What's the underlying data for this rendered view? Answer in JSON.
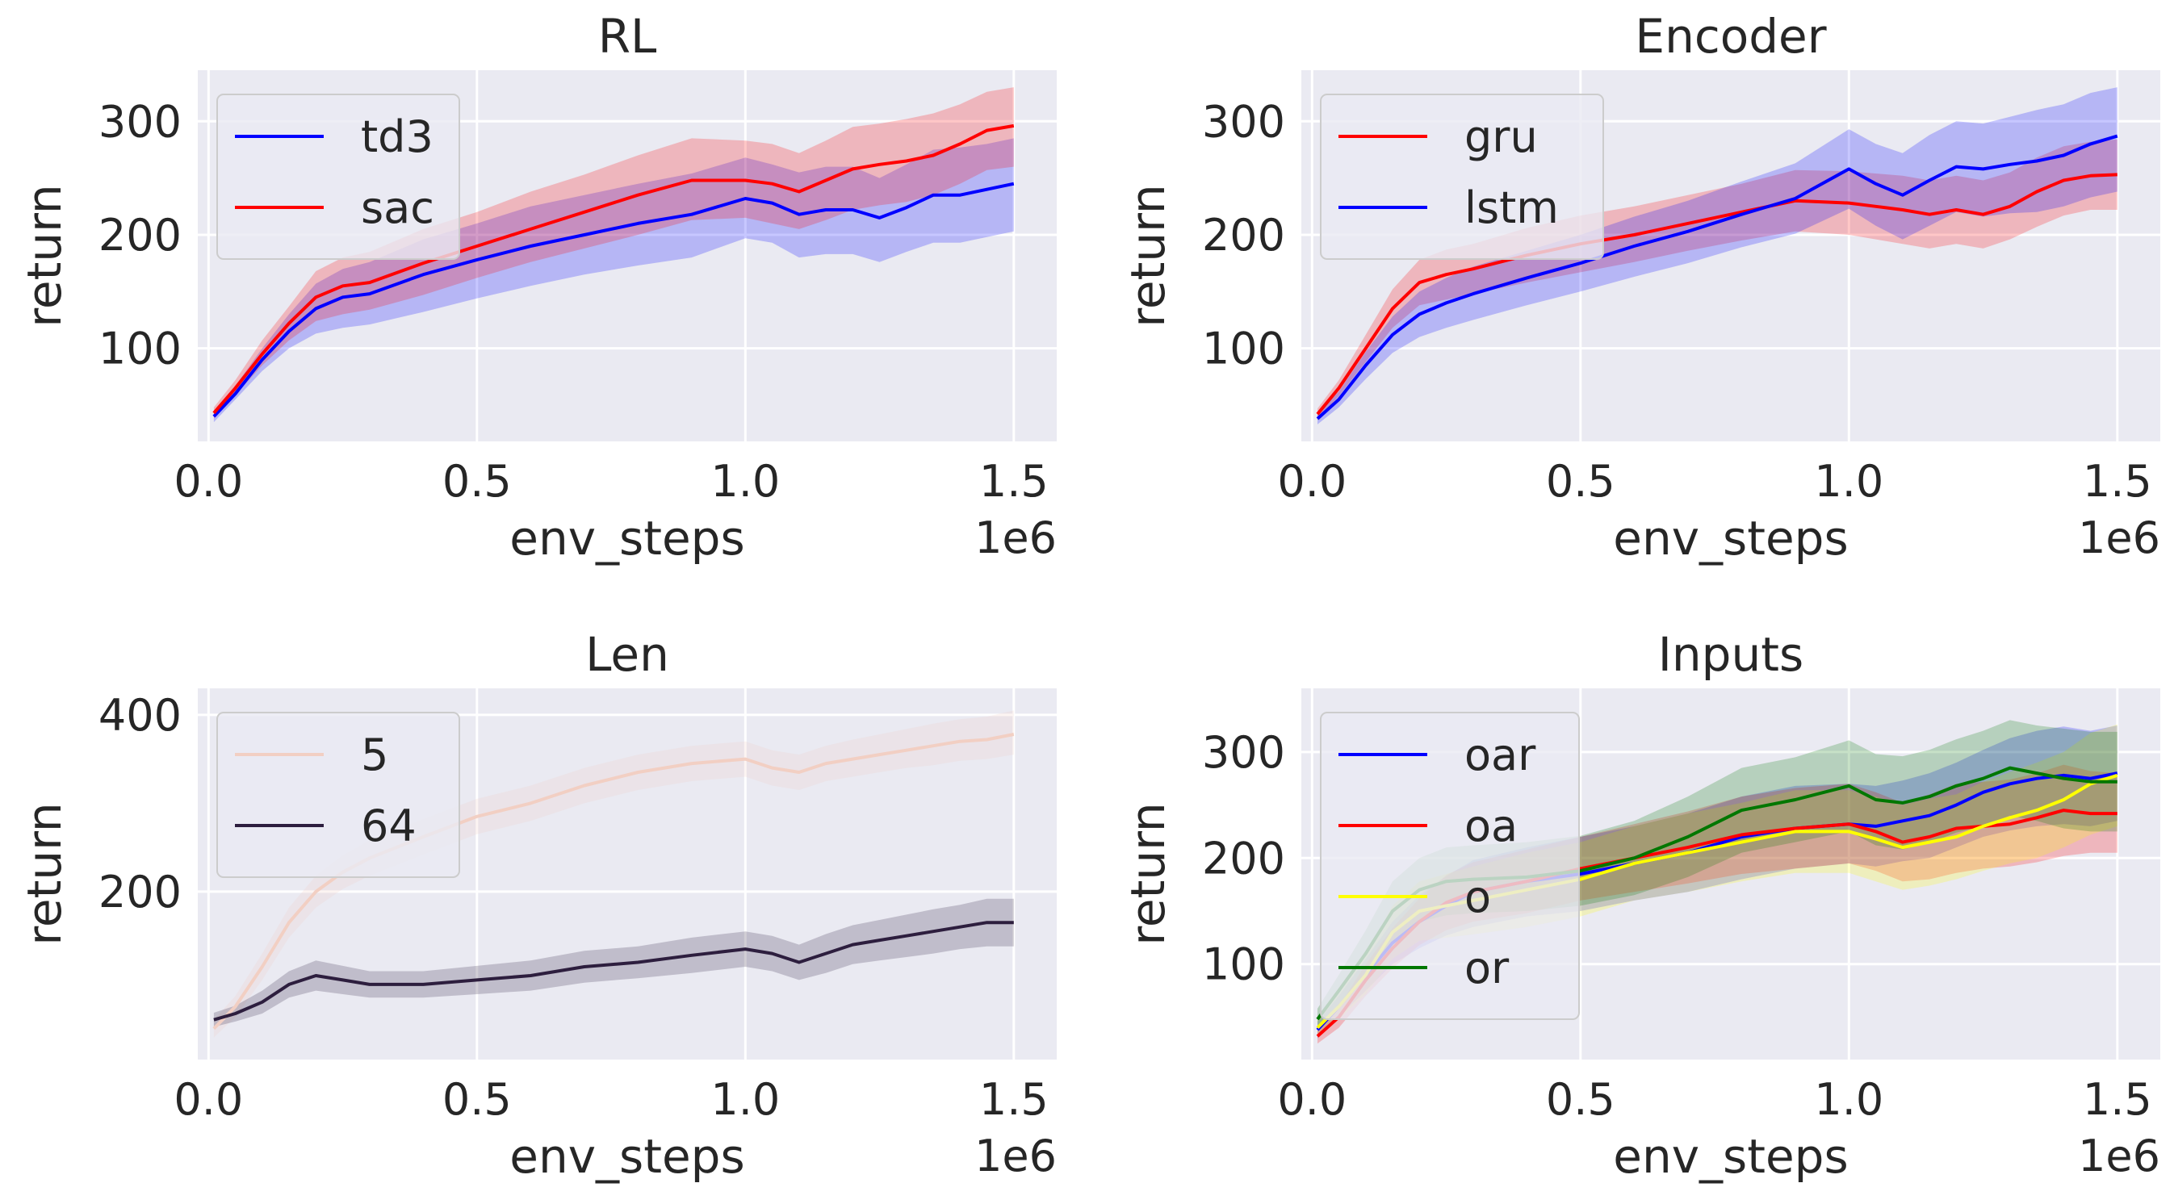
{
  "chart_data": [
    {
      "type": "line",
      "title": "RL",
      "xlabel": "env_steps",
      "ylabel": "return",
      "x_offset_label": "1e6",
      "xlim": [
        -0.02,
        1.58
      ],
      "ylim": [
        18,
        345
      ],
      "xticks": [
        0.0,
        0.5,
        1.0,
        1.5
      ],
      "xtick_labels": [
        "0.0",
        "0.5",
        "1.0",
        "1.5"
      ],
      "yticks": [
        100,
        200,
        300
      ],
      "ytick_labels": [
        "100",
        "200",
        "300"
      ],
      "legend": "top-left",
      "x": [
        0.01,
        0.05,
        0.1,
        0.15,
        0.2,
        0.25,
        0.3,
        0.4,
        0.5,
        0.6,
        0.7,
        0.8,
        0.9,
        1.0,
        1.05,
        1.1,
        1.15,
        1.2,
        1.25,
        1.3,
        1.35,
        1.4,
        1.45,
        1.5
      ],
      "series": [
        {
          "name": "td3",
          "color": "#0000ff",
          "values": [
            40,
            60,
            90,
            115,
            135,
            145,
            148,
            165,
            178,
            190,
            200,
            210,
            218,
            232,
            228,
            218,
            222,
            222,
            215,
            224,
            235,
            235,
            240,
            245
          ],
          "lower": [
            35,
            55,
            80,
            100,
            113,
            118,
            121,
            132,
            144,
            155,
            165,
            173,
            180,
            197,
            193,
            180,
            183,
            183,
            176,
            185,
            193,
            193,
            198,
            203
          ],
          "upper": [
            45,
            67,
            100,
            130,
            157,
            170,
            176,
            196,
            210,
            225,
            235,
            245,
            254,
            268,
            262,
            255,
            260,
            260,
            250,
            262,
            275,
            277,
            280,
            285
          ]
        },
        {
          "name": "sac",
          "color": "#ff0000",
          "values": [
            43,
            65,
            95,
            122,
            145,
            155,
            158,
            175,
            190,
            205,
            220,
            235,
            248,
            248,
            245,
            238,
            248,
            258,
            262,
            265,
            270,
            280,
            292,
            296
          ],
          "lower": [
            38,
            59,
            85,
            107,
            124,
            130,
            134,
            147,
            162,
            176,
            188,
            200,
            213,
            215,
            210,
            205,
            213,
            222,
            226,
            229,
            235,
            245,
            257,
            260
          ],
          "upper": [
            48,
            72,
            107,
            137,
            168,
            180,
            185,
            205,
            220,
            238,
            253,
            270,
            285,
            283,
            280,
            272,
            283,
            295,
            298,
            302,
            307,
            315,
            326,
            330
          ]
        }
      ]
    },
    {
      "type": "line",
      "title": "Encoder",
      "xlabel": "env_steps",
      "ylabel": "return",
      "x_offset_label": "1e6",
      "xlim": [
        -0.02,
        1.58
      ],
      "ylim": [
        18,
        345
      ],
      "xticks": [
        0.0,
        0.5,
        1.0,
        1.5
      ],
      "xtick_labels": [
        "0.0",
        "0.5",
        "1.0",
        "1.5"
      ],
      "yticks": [
        100,
        200,
        300
      ],
      "ytick_labels": [
        "100",
        "200",
        "300"
      ],
      "legend": "top-left",
      "x": [
        0.01,
        0.05,
        0.1,
        0.15,
        0.2,
        0.25,
        0.3,
        0.4,
        0.5,
        0.6,
        0.7,
        0.8,
        0.9,
        1.0,
        1.05,
        1.1,
        1.15,
        1.2,
        1.25,
        1.3,
        1.35,
        1.4,
        1.45,
        1.5
      ],
      "series": [
        {
          "name": "gru",
          "color": "#ff0000",
          "values": [
            42,
            65,
            100,
            135,
            158,
            165,
            170,
            182,
            192,
            200,
            210,
            220,
            230,
            228,
            225,
            222,
            218,
            222,
            218,
            225,
            238,
            248,
            252,
            253
          ],
          "lower": [
            37,
            58,
            88,
            118,
            138,
            143,
            148,
            158,
            167,
            176,
            186,
            195,
            203,
            200,
            196,
            192,
            188,
            192,
            188,
            196,
            207,
            217,
            222,
            222
          ],
          "upper": [
            47,
            72,
            112,
            152,
            178,
            187,
            192,
            206,
            217,
            225,
            235,
            245,
            257,
            256,
            254,
            252,
            248,
            252,
            248,
            255,
            268,
            278,
            282,
            284
          ]
        },
        {
          "name": "lstm",
          "color": "#0000ff",
          "values": [
            38,
            55,
            85,
            112,
            130,
            140,
            148,
            162,
            175,
            190,
            203,
            218,
            232,
            258,
            245,
            235,
            248,
            260,
            258,
            262,
            265,
            270,
            280,
            287
          ],
          "lower": [
            33,
            48,
            73,
            96,
            110,
            118,
            125,
            138,
            150,
            163,
            175,
            189,
            201,
            223,
            208,
            196,
            208,
            220,
            216,
            219,
            220,
            225,
            233,
            238
          ],
          "upper": [
            43,
            62,
            97,
            128,
            150,
            162,
            172,
            186,
            200,
            216,
            230,
            247,
            263,
            293,
            280,
            272,
            288,
            300,
            298,
            304,
            310,
            315,
            325,
            330
          ]
        }
      ]
    },
    {
      "type": "line",
      "title": "Len",
      "xlabel": "env_steps",
      "ylabel": "return",
      "x_offset_label": "1e6",
      "xlim": [
        -0.02,
        1.58
      ],
      "ylim": [
        10,
        430
      ],
      "xticks": [
        0.0,
        0.5,
        1.0,
        1.5
      ],
      "xtick_labels": [
        "0.0",
        "0.5",
        "1.0",
        "1.5"
      ],
      "yticks": [
        200,
        400
      ],
      "ytick_labels": [
        "200",
        "400"
      ],
      "legend": "top-left",
      "x": [
        0.01,
        0.05,
        0.1,
        0.15,
        0.2,
        0.25,
        0.3,
        0.4,
        0.5,
        0.6,
        0.7,
        0.8,
        0.9,
        1.0,
        1.05,
        1.1,
        1.15,
        1.2,
        1.25,
        1.3,
        1.35,
        1.4,
        1.45,
        1.5
      ],
      "series": [
        {
          "name": "5",
          "color": "#f2cfc3",
          "values": [
            45,
            70,
            115,
            165,
            200,
            222,
            238,
            262,
            285,
            300,
            320,
            335,
            345,
            350,
            340,
            335,
            345,
            350,
            355,
            360,
            365,
            370,
            372,
            378
          ],
          "lower": [
            35,
            58,
            100,
            148,
            182,
            203,
            218,
            242,
            265,
            280,
            300,
            315,
            325,
            330,
            320,
            315,
            325,
            330,
            335,
            340,
            343,
            348,
            350,
            355
          ],
          "upper": [
            55,
            82,
            130,
            182,
            218,
            241,
            258,
            282,
            305,
            320,
            340,
            355,
            365,
            370,
            360,
            355,
            365,
            372,
            378,
            384,
            390,
            395,
            398,
            405
          ]
        },
        {
          "name": "64",
          "color": "#2d1e3e",
          "values": [
            55,
            62,
            75,
            95,
            105,
            100,
            95,
            95,
            100,
            105,
            115,
            120,
            128,
            135,
            130,
            120,
            130,
            140,
            145,
            150,
            155,
            160,
            165,
            165
          ],
          "lower": [
            47,
            53,
            62,
            80,
            88,
            84,
            80,
            80,
            84,
            88,
            97,
            102,
            108,
            115,
            110,
            100,
            108,
            118,
            122,
            126,
            130,
            135,
            138,
            138
          ],
          "upper": [
            63,
            71,
            88,
            110,
            122,
            116,
            110,
            110,
            116,
            122,
            133,
            138,
            148,
            155,
            150,
            140,
            152,
            162,
            168,
            174,
            180,
            185,
            192,
            192
          ]
        }
      ]
    },
    {
      "type": "line",
      "title": "Inputs",
      "xlabel": "env_steps",
      "ylabel": "return",
      "x_offset_label": "1e6",
      "xlim": [
        -0.02,
        1.58
      ],
      "ylim": [
        10,
        360
      ],
      "xticks": [
        0.0,
        0.5,
        1.0,
        1.5
      ],
      "xtick_labels": [
        "0.0",
        "0.5",
        "1.0",
        "1.5"
      ],
      "yticks": [
        100,
        200,
        300
      ],
      "ytick_labels": [
        "100",
        "200",
        "300"
      ],
      "legend": "top-left",
      "x": [
        0.01,
        0.05,
        0.1,
        0.15,
        0.2,
        0.25,
        0.3,
        0.4,
        0.5,
        0.6,
        0.7,
        0.8,
        0.9,
        1.0,
        1.05,
        1.1,
        1.15,
        1.2,
        1.25,
        1.3,
        1.35,
        1.4,
        1.45,
        1.5
      ],
      "series": [
        {
          "name": "oar",
          "color": "#0000ff",
          "values": [
            38,
            60,
            90,
            120,
            140,
            155,
            168,
            178,
            185,
            195,
            205,
            220,
            228,
            232,
            230,
            235,
            240,
            250,
            262,
            270,
            275,
            278,
            275,
            280
          ],
          "lower": [
            30,
            50,
            75,
            100,
            115,
            127,
            135,
            145,
            150,
            160,
            168,
            180,
            190,
            195,
            192,
            197,
            200,
            210,
            220,
            226,
            230,
            232,
            230,
            235
          ],
          "upper": [
            46,
            70,
            105,
            140,
            165,
            183,
            198,
            210,
            220,
            230,
            242,
            258,
            268,
            270,
            268,
            273,
            280,
            290,
            302,
            313,
            320,
            324,
            320,
            325
          ]
        },
        {
          "name": "oa",
          "color": "#ff0000",
          "values": [
            32,
            50,
            85,
            115,
            140,
            158,
            168,
            178,
            190,
            200,
            210,
            222,
            228,
            232,
            225,
            215,
            220,
            228,
            230,
            232,
            238,
            245,
            242,
            242
          ],
          "lower": [
            25,
            40,
            70,
            96,
            118,
            132,
            140,
            148,
            160,
            168,
            176,
            185,
            190,
            195,
            188,
            178,
            180,
            186,
            190,
            192,
            196,
            202,
            205,
            205
          ],
          "upper": [
            39,
            60,
            100,
            134,
            162,
            184,
            196,
            208,
            220,
            232,
            244,
            258,
            266,
            270,
            262,
            252,
            260,
            270,
            272,
            274,
            280,
            288,
            282,
            280
          ]
        },
        {
          "name": "o",
          "color": "#ffff00",
          "values": [
            40,
            60,
            90,
            130,
            150,
            155,
            160,
            170,
            180,
            195,
            205,
            215,
            225,
            225,
            218,
            210,
            215,
            220,
            230,
            238,
            245,
            255,
            270,
            278
          ],
          "lower": [
            32,
            48,
            72,
            105,
            122,
            125,
            128,
            135,
            145,
            160,
            168,
            178,
            186,
            186,
            178,
            170,
            174,
            180,
            188,
            195,
            200,
            210,
            222,
            230
          ],
          "upper": [
            48,
            72,
            108,
            155,
            178,
            185,
            192,
            205,
            215,
            230,
            242,
            252,
            264,
            264,
            258,
            250,
            256,
            260,
            272,
            281,
            290,
            300,
            318,
            326
          ]
        },
        {
          "name": "or",
          "color": "#007700",
          "values": [
            48,
            75,
            110,
            150,
            170,
            178,
            180,
            182,
            188,
            200,
            220,
            245,
            255,
            268,
            255,
            252,
            258,
            268,
            275,
            285,
            280,
            275,
            272,
            272
          ],
          "lower": [
            38,
            60,
            88,
            122,
            140,
            146,
            148,
            150,
            155,
            165,
            182,
            205,
            215,
            225,
            212,
            208,
            214,
            224,
            230,
            240,
            235,
            228,
            225,
            225
          ],
          "upper": [
            58,
            90,
            132,
            178,
            200,
            210,
            212,
            215,
            221,
            235,
            258,
            285,
            295,
            311,
            298,
            296,
            302,
            312,
            320,
            330,
            325,
            322,
            319,
            319
          ]
        }
      ]
    }
  ]
}
